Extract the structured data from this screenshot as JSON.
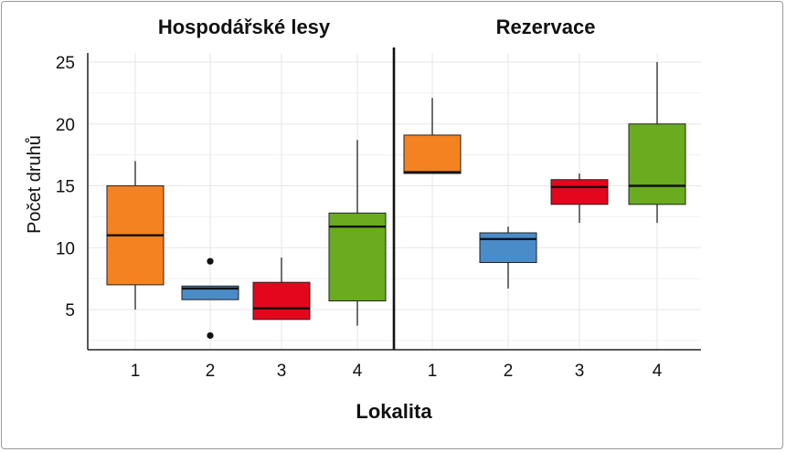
{
  "chart_data": {
    "type": "box",
    "panels": [
      {
        "title": "Hospodářské lesy",
        "boxes": [
          {
            "category": "1",
            "color": "#f58220",
            "min": 5,
            "q1": 7,
            "median": 11,
            "q3": 15,
            "max": 17,
            "outliers": []
          },
          {
            "category": "2",
            "color": "#4a8cc7",
            "min": 5.8,
            "q1": 5.8,
            "median": 6.7,
            "q3": 6.9,
            "max": 6.9,
            "outliers": [
              8.9,
              2.9
            ]
          },
          {
            "category": "3",
            "color": "#e3061c",
            "min": 4.2,
            "q1": 4.2,
            "median": 5.1,
            "q3": 7.2,
            "max": 9.2,
            "outliers": []
          },
          {
            "category": "4",
            "color": "#6aab1f",
            "min": 3.7,
            "q1": 5.7,
            "median": 11.7,
            "q3": 12.8,
            "max": 18.7,
            "outliers": []
          }
        ]
      },
      {
        "title": "Rezervace",
        "boxes": [
          {
            "category": "1",
            "color": "#f58220",
            "min": 16,
            "q1": 16,
            "median": 16.1,
            "q3": 19.1,
            "max": 22.1,
            "outliers": []
          },
          {
            "category": "2",
            "color": "#4a8cc7",
            "min": 6.7,
            "q1": 8.8,
            "median": 10.7,
            "q3": 11.2,
            "max": 11.7,
            "outliers": []
          },
          {
            "category": "3",
            "color": "#e3061c",
            "min": 12,
            "q1": 13.5,
            "median": 14.9,
            "q3": 15.5,
            "max": 16,
            "outliers": []
          },
          {
            "category": "4",
            "color": "#6aab1f",
            "min": 12,
            "q1": 13.5,
            "median": 15,
            "q3": 20,
            "max": 25,
            "outliers": []
          }
        ]
      }
    ],
    "ylabel": "Počet druhů",
    "xlabel": "Lokalita",
    "yticks": [
      5,
      10,
      15,
      20,
      25
    ],
    "ylim": [
      2,
      26
    ],
    "grid": true
  }
}
